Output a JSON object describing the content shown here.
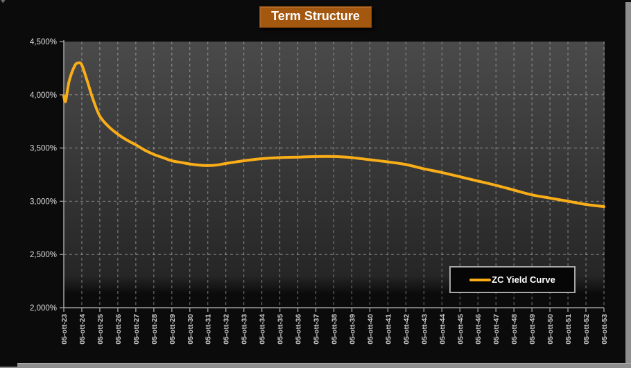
{
  "window": {
    "corner_glyph": "+",
    "chrome_color": "#8e8e8e",
    "background_color": "#0b0b0b"
  },
  "title": {
    "text": "Term Structure",
    "background_color": "#a4570f",
    "text_color": "#ffffff"
  },
  "legend": {
    "label": "ZC Yield Curve",
    "line_color": "#f9ae18",
    "position": "inside-bottom-right"
  },
  "chart_data": {
    "type": "line",
    "title": "Term Structure",
    "xlabel": "",
    "ylabel": "",
    "x_range": [
      23,
      53
    ],
    "y_range": [
      2.0,
      4.5
    ],
    "grid": {
      "style": "dashed",
      "color": "#d6d6d6",
      "vertical": true,
      "horizontal": true
    },
    "axis_color": "#9c9c9c",
    "plot_bg_gradient": [
      "#4a4a4a",
      "#363636",
      "#262626",
      "#0b0b0b"
    ],
    "x_tick_years": [
      23,
      24,
      25,
      26,
      27,
      28,
      29,
      30,
      31,
      32,
      33,
      34,
      35,
      36,
      37,
      38,
      39,
      40,
      41,
      42,
      43,
      44,
      45,
      46,
      47,
      48,
      49,
      50,
      51,
      52,
      53
    ],
    "x_tick_labels": [
      "05-ott-23",
      "05-ott-24",
      "05-ott-25",
      "05-ott-26",
      "05-ott-27",
      "05-ott-28",
      "05-ott-29",
      "05-ott-30",
      "05-ott-31",
      "05-ott-32",
      "05-ott-33",
      "05-ott-34",
      "05-ott-35",
      "05-ott-36",
      "05-ott-37",
      "05-ott-38",
      "05-ott-39",
      "05-ott-40",
      "05-ott-41",
      "05-ott-42",
      "05-ott-43",
      "05-ott-44",
      "05-ott-45",
      "05-ott-46",
      "05-ott-47",
      "05-ott-48",
      "05-ott-49",
      "05-ott-50",
      "05-ott-51",
      "05-ott-52",
      "05-ott-53"
    ],
    "y_tick_values": [
      4.5,
      4.0,
      3.5,
      3.0,
      2.5,
      2.0
    ],
    "y_tick_labels": [
      "4,500%",
      "4,000%",
      "3,500%",
      "3,000%",
      "2,500%",
      "2,000%"
    ],
    "series": [
      {
        "name": "ZC Yield Curve",
        "color": "#f9ae18",
        "points": [
          [
            23.0,
            3.99
          ],
          [
            23.1,
            3.94
          ],
          [
            23.3,
            4.13
          ],
          [
            23.6,
            4.27
          ],
          [
            23.8,
            4.3
          ],
          [
            24.0,
            4.28
          ],
          [
            24.3,
            4.13
          ],
          [
            24.6,
            3.97
          ],
          [
            25.0,
            3.8
          ],
          [
            25.5,
            3.7
          ],
          [
            26.0,
            3.63
          ],
          [
            26.5,
            3.575
          ],
          [
            27.0,
            3.53
          ],
          [
            27.5,
            3.48
          ],
          [
            28.0,
            3.44
          ],
          [
            28.5,
            3.41
          ],
          [
            29.0,
            3.38
          ],
          [
            29.5,
            3.365
          ],
          [
            30.0,
            3.35
          ],
          [
            30.5,
            3.34
          ],
          [
            31.0,
            3.335
          ],
          [
            31.5,
            3.34
          ],
          [
            32.0,
            3.355
          ],
          [
            33.0,
            3.38
          ],
          [
            34.0,
            3.4
          ],
          [
            35.0,
            3.41
          ],
          [
            36.0,
            3.415
          ],
          [
            37.0,
            3.42
          ],
          [
            38.0,
            3.42
          ],
          [
            39.0,
            3.41
          ],
          [
            40.0,
            3.39
          ],
          [
            41.0,
            3.37
          ],
          [
            42.0,
            3.345
          ],
          [
            43.0,
            3.305
          ],
          [
            44.0,
            3.27
          ],
          [
            45.0,
            3.23
          ],
          [
            46.0,
            3.19
          ],
          [
            47.0,
            3.15
          ],
          [
            48.0,
            3.105
          ],
          [
            49.0,
            3.06
          ],
          [
            50.0,
            3.03
          ],
          [
            51.0,
            3.0
          ],
          [
            52.0,
            2.97
          ],
          [
            53.0,
            2.95
          ]
        ]
      }
    ]
  }
}
